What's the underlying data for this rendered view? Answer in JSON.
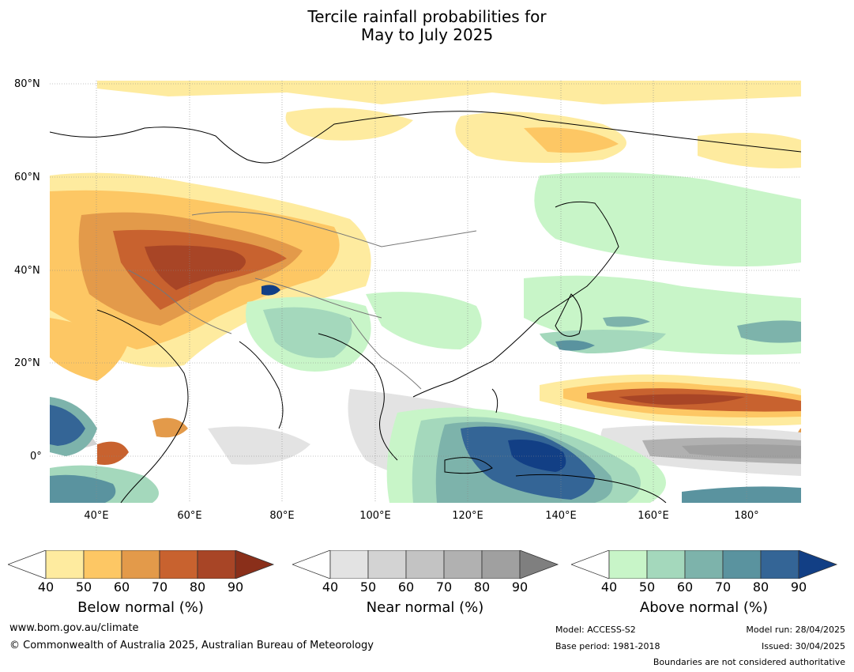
{
  "title": {
    "line1": "Tercile rainfall probabilities for",
    "line2": "May to July 2025"
  },
  "map": {
    "latitude_labels": [
      "80°N",
      "60°N",
      "40°N",
      "20°N",
      "0°"
    ],
    "longitude_labels": [
      "40°E",
      "60°E",
      "80°E",
      "100°E",
      "120°E",
      "140°E",
      "160°E",
      "180°"
    ]
  },
  "legend": {
    "tick_values": [
      "40",
      "50",
      "60",
      "70",
      "80",
      "90"
    ],
    "below": {
      "label": "Below normal (%)",
      "colors": [
        "#ffffff",
        "#feeb9f",
        "#fdc764",
        "#e39a4a",
        "#c8622f",
        "#a84526",
        "#8a2f1a"
      ]
    },
    "near": {
      "label": "Near normal (%)",
      "colors": [
        "#ffffff",
        "#e3e3e3",
        "#d3d3d3",
        "#c3c3c3",
        "#b1b1b1",
        "#a0a0a0",
        "#7f7f7f"
      ]
    },
    "above": {
      "label": "Above normal (%)",
      "colors": [
        "#ffffff",
        "#c8f5c8",
        "#a4d8bc",
        "#7db3ab",
        "#5a939f",
        "#346596",
        "#123f85"
      ]
    }
  },
  "footer": {
    "website": "www.bom.gov.au/climate",
    "copyright": "© Commonwealth of Australia 2025, Australian Bureau of Meteorology",
    "model": "Model: ACCESS-S2",
    "base_period": "Base period: 1981-2018",
    "model_run": "Model run: 28/04/2025",
    "issued": "Issued: 30/04/2025",
    "disclaimer": "Boundaries are not considered authoritative"
  }
}
